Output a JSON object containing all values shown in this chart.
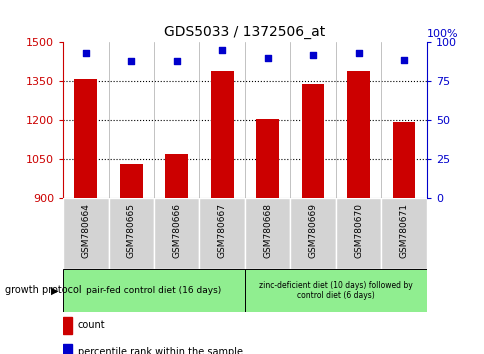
{
  "title": "GDS5033 / 1372506_at",
  "samples": [
    "GSM780664",
    "GSM780665",
    "GSM780666",
    "GSM780667",
    "GSM780668",
    "GSM780669",
    "GSM780670",
    "GSM780671"
  ],
  "counts": [
    1358,
    1030,
    1070,
    1390,
    1205,
    1340,
    1390,
    1195
  ],
  "percentiles": [
    93,
    88,
    88,
    95,
    90,
    92,
    93,
    89
  ],
  "ylim_left": [
    900,
    1500
  ],
  "ylim_right": [
    0,
    100
  ],
  "yticks_left": [
    900,
    1050,
    1200,
    1350,
    1500
  ],
  "yticks_right": [
    0,
    25,
    50,
    75,
    100
  ],
  "bar_color": "#cc0000",
  "dot_color": "#0000cc",
  "bar_bottom": 900,
  "protocol_groups": [
    {
      "label": "pair-fed control diet (16 days)",
      "start": 0,
      "end": 4,
      "color": "#90ee90"
    },
    {
      "label": "zinc-deficient diet (10 days) followed by\ncontrol diet (6 days)",
      "start": 4,
      "end": 8,
      "color": "#90ee90"
    }
  ],
  "legend_items": [
    {
      "color": "#cc0000",
      "label": "count"
    },
    {
      "color": "#0000cc",
      "label": "percentile rank within the sample"
    }
  ],
  "growth_protocol_label": "growth protocol",
  "tick_color_left": "#cc0000",
  "tick_color_right": "#0000cc",
  "right_axis_label": "100%",
  "fig_bg": "#ffffff",
  "sample_bg": "#d3d3d3",
  "plot_bg": "#ffffff"
}
